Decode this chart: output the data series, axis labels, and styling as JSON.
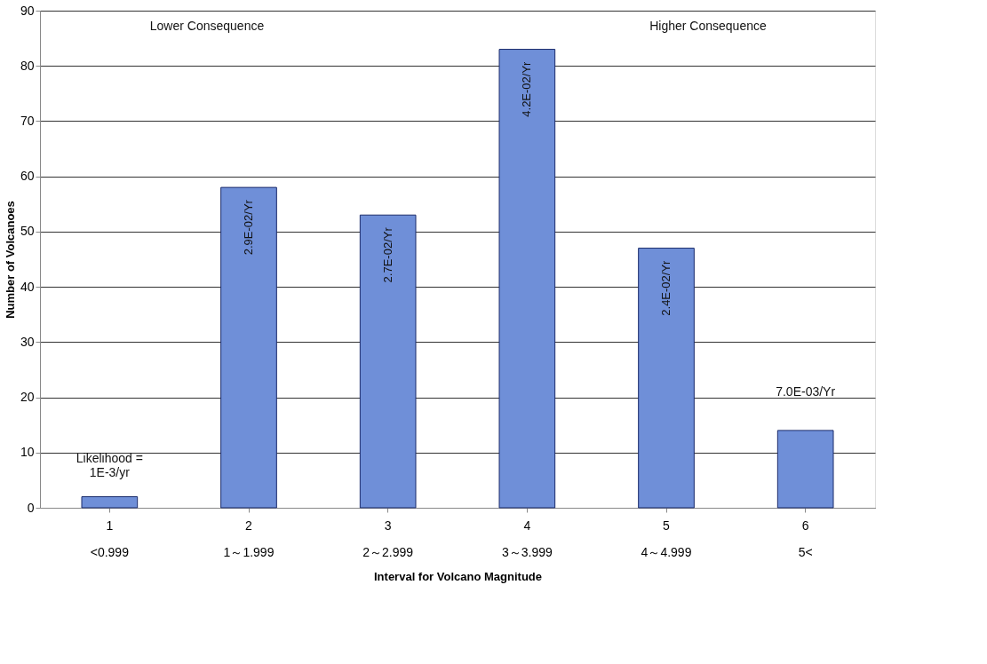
{
  "chart_data": {
    "type": "bar",
    "xlabel": "Interval for Volcano Magnitude",
    "ylabel": "Number of Volcanoes",
    "categories": [
      "1\n<0.999",
      "2\n1～1.999",
      "3\n2～2.999",
      "4\n3～3.999",
      "5\n4～4.999",
      "6\n5<"
    ],
    "values": [
      2,
      58,
      53,
      83,
      47,
      14
    ],
    "color": "#6f8fd8",
    "ylim": [
      0,
      90
    ],
    "yticks": [
      0,
      10,
      20,
      30,
      40,
      50,
      60,
      70,
      80,
      90
    ],
    "grid": "y",
    "annotations": [
      "Lower Consequence",
      "Higher Consequence",
      {
        "text": "Likelihood =\n1E-3/yr",
        "x": "1\n<0.999",
        "y": 2
      },
      {
        "text": "2.9E-02/Yr",
        "x": "2\n1～1.999",
        "y": 58
      },
      {
        "text": "2.7E-02/Yr",
        "x": "3\n2～2.999",
        "y": 53
      },
      {
        "text": "4.2E-02/Yr",
        "x": "4\n3～3.999",
        "y": 83
      },
      {
        "text": "2.4E-02/Yr",
        "x": "5\n4～4.999",
        "y": 47
      },
      {
        "text": "7.0E-03/Yr",
        "x": "6\n5<",
        "y": 14
      }
    ]
  }
}
